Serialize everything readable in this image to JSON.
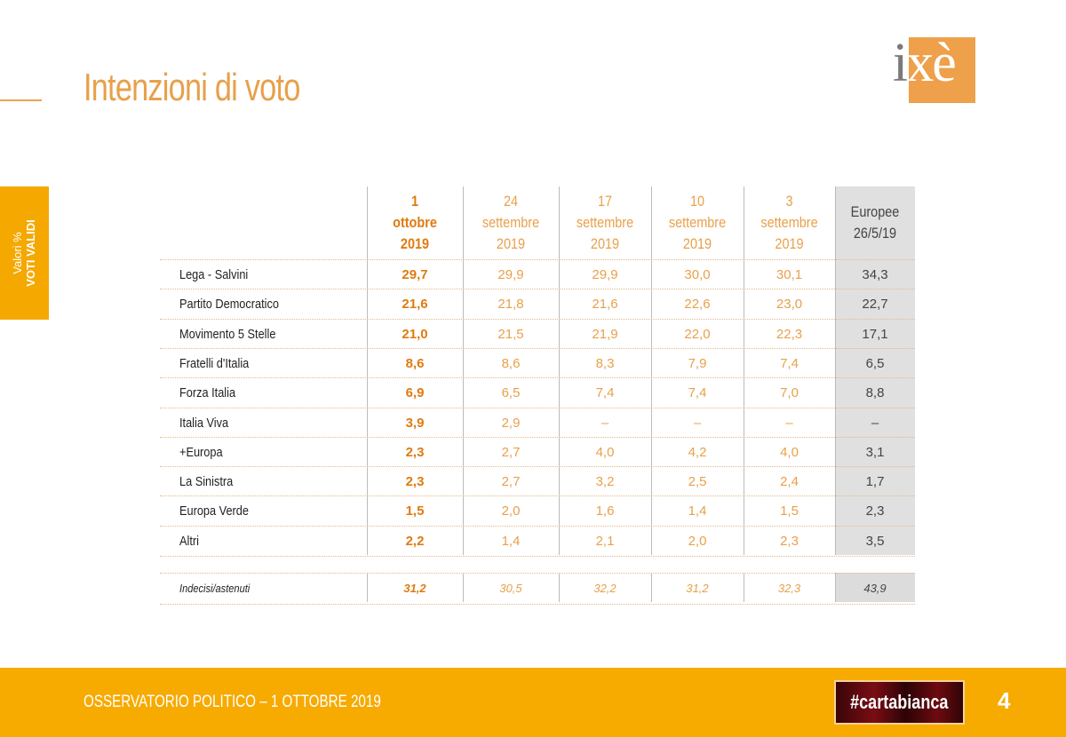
{
  "header": {
    "title": "Intenzioni di voto",
    "logo_text": "ixè"
  },
  "side_tab": {
    "line1": "Valori %",
    "line2": "VOTI VALIDI"
  },
  "colors": {
    "accent": "#f5a800",
    "text_orange": "#e8a04a",
    "bold_orange": "#e07a10",
    "eu_column": "#e0e0e0"
  },
  "chart_data": {
    "type": "table",
    "title": "Intenzioni di voto",
    "columns": [
      [
        "1",
        "ottobre",
        "2019"
      ],
      [
        "24",
        "settembre",
        "2019"
      ],
      [
        "17",
        "settembre",
        "2019"
      ],
      [
        "10",
        "settembre",
        "2019"
      ],
      [
        "3",
        "settembre",
        "2019"
      ],
      [
        "Europee",
        "26/5/19"
      ]
    ],
    "rows": [
      {
        "label": "Lega - Salvini",
        "values": [
          "29,7",
          "29,9",
          "29,9",
          "30,0",
          "30,1",
          "34,3"
        ]
      },
      {
        "label": "Partito Democratico",
        "values": [
          "21,6",
          "21,8",
          "21,6",
          "22,6",
          "23,0",
          "22,7"
        ]
      },
      {
        "label": "Movimento 5 Stelle",
        "values": [
          "21,0",
          "21,5",
          "21,9",
          "22,0",
          "22,3",
          "17,1"
        ]
      },
      {
        "label": "Fratelli d'Italia",
        "values": [
          "8,6",
          "8,6",
          "8,3",
          "7,9",
          "7,4",
          "6,5"
        ]
      },
      {
        "label": "Forza Italia",
        "values": [
          "6,9",
          "6,5",
          "7,4",
          "7,4",
          "7,0",
          "8,8"
        ]
      },
      {
        "label": "Italia Viva",
        "values": [
          "3,9",
          "2,9",
          "–",
          "–",
          "–",
          "–"
        ]
      },
      {
        "label": "+Europa",
        "values": [
          "2,3",
          "2,7",
          "4,0",
          "4,2",
          "4,0",
          "3,1"
        ]
      },
      {
        "label": "La Sinistra",
        "values": [
          "2,3",
          "2,7",
          "3,2",
          "2,5",
          "2,4",
          "1,7"
        ]
      },
      {
        "label": "Europa Verde",
        "values": [
          "1,5",
          "2,0",
          "1,6",
          "1,4",
          "1,5",
          "2,3"
        ]
      },
      {
        "label": "Altri",
        "values": [
          "2,2",
          "1,4",
          "2,1",
          "2,0",
          "2,3",
          "3,5"
        ]
      }
    ],
    "extra_row": {
      "label": "Indecisi/astenuti",
      "values": [
        "31,2",
        "30,5",
        "32,2",
        "31,2",
        "32,3",
        "43,9"
      ]
    }
  },
  "footer": {
    "text": "OSSERVATORIO POLITICO – 1 OTTOBRE 2019",
    "badge": "#cartabianca",
    "page": "4"
  }
}
